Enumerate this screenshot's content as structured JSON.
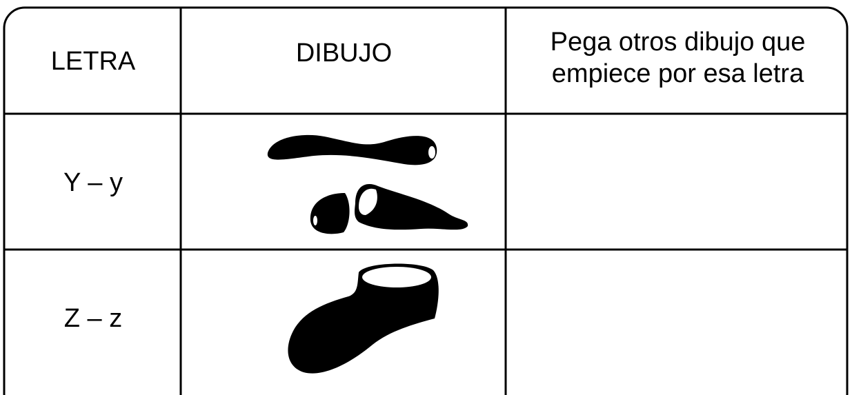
{
  "table": {
    "header": [
      "LETRA",
      "DIBUJO",
      "Pega otros dibujo que empiece por esa letra"
    ],
    "rows": [
      [
        "Y – y"
      ],
      [
        "Z – z"
      ]
    ]
  }
}
